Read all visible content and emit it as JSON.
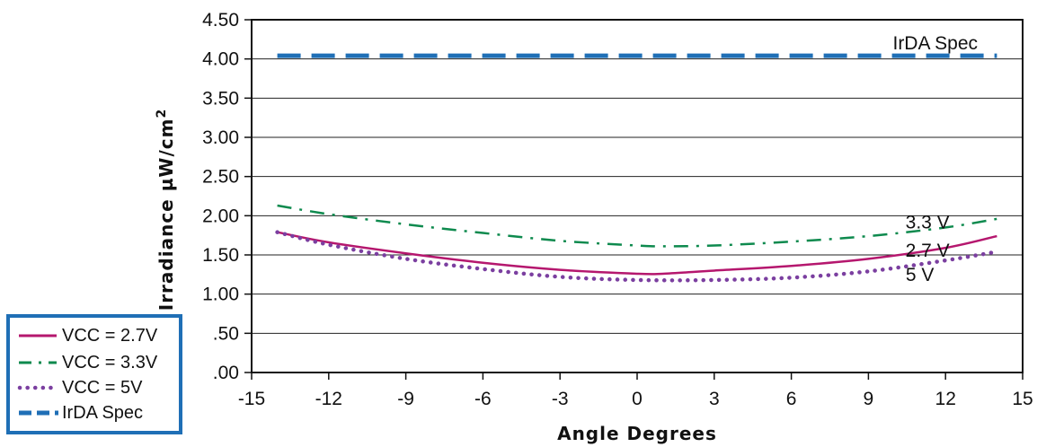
{
  "chart_data": {
    "type": "line",
    "xlabel": "Angle Degrees",
    "ylabel": "Irradiance µW/cm",
    "ylabel_sup": "2",
    "xlim": [
      -15,
      15
    ],
    "ylim": [
      0,
      4.5
    ],
    "x_ticks": [
      -15,
      -12,
      -9,
      -6,
      -3,
      0,
      3,
      6,
      9,
      12,
      15
    ],
    "x_tick_labels": [
      "-15",
      "-12",
      "-9",
      "-6",
      "-3",
      "0",
      "3",
      "6",
      "9",
      "12",
      "15"
    ],
    "y_ticks": [
      0,
      0.5,
      1.0,
      1.5,
      2.0,
      2.5,
      3.0,
      3.5,
      4.0,
      4.5
    ],
    "y_tick_labels": [
      ".00",
      ".50",
      "1.00",
      "1.50",
      "2.00",
      "2.50",
      "3.00",
      "3.50",
      "4.00",
      "4.50"
    ],
    "grid": "horizontal",
    "legend_position": "bottom-left outside",
    "series": [
      {
        "name": "VCC = 2.7V",
        "style": "solid",
        "color": "#b5176e",
        "x": [
          -14,
          -12,
          -9,
          -6,
          -3,
          0,
          1,
          3,
          6,
          9,
          12,
          14
        ],
        "y": [
          1.79,
          1.66,
          1.52,
          1.4,
          1.31,
          1.26,
          1.26,
          1.3,
          1.36,
          1.45,
          1.59,
          1.74
        ]
      },
      {
        "name": "VCC = 3.3V",
        "style": "dashdot",
        "color": "#0e8a4e",
        "x": [
          -14,
          -12,
          -9,
          -6,
          -3,
          0,
          1,
          3,
          6,
          9,
          12,
          14
        ],
        "y": [
          2.13,
          2.02,
          1.89,
          1.78,
          1.68,
          1.62,
          1.61,
          1.62,
          1.67,
          1.74,
          1.85,
          1.96
        ]
      },
      {
        "name": "VCC = 5V",
        "style": "dotted",
        "color": "#7b3fa0",
        "x": [
          -14,
          -12,
          -9,
          -6,
          -3,
          0,
          3,
          6,
          9,
          12,
          14
        ],
        "y": [
          1.79,
          1.63,
          1.45,
          1.32,
          1.22,
          1.18,
          1.18,
          1.21,
          1.29,
          1.43,
          1.54
        ]
      },
      {
        "name": "IrDA Spec",
        "style": "dashed",
        "color": "#1f6fb6",
        "x": [
          -14,
          14
        ],
        "y": [
          4.04,
          4.04
        ]
      }
    ],
    "annotations": [
      {
        "text": "IrDA Spec",
        "x": 11.6,
        "y": 4.2
      },
      {
        "text": "3.3 V",
        "x": 11.3,
        "y": 1.92
      },
      {
        "text": "2.7 V",
        "x": 11.3,
        "y": 1.56
      },
      {
        "text": "5 V",
        "x": 11.0,
        "y": 1.25
      }
    ]
  }
}
